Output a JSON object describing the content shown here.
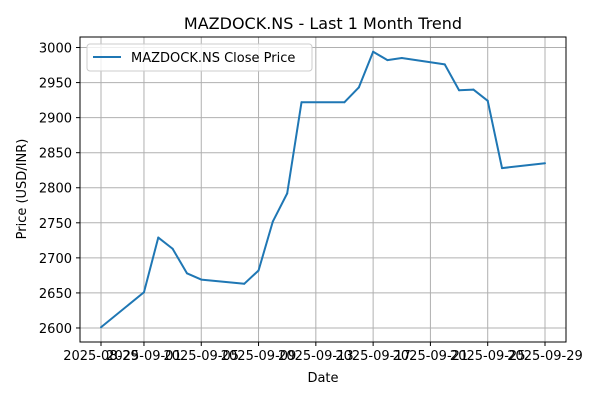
{
  "chart_data": {
    "type": "line",
    "title": "MAZDOCK.NS - Last 1 Month Trend",
    "xlabel": "Date",
    "ylabel": "Price (USD/INR)",
    "ylim": [
      2580,
      3015
    ],
    "yticks": [
      2600,
      2650,
      2700,
      2750,
      2800,
      2850,
      2900,
      2950,
      3000
    ],
    "xtick_labels": [
      "2025-08-29",
      "2025-09-01",
      "2025-09-05",
      "2025-09-09",
      "2025-09-13",
      "2025-09-17",
      "2025-09-21",
      "2025-09-25",
      "2025-09-29"
    ],
    "grid": true,
    "legend_position": "top-left",
    "colors": {
      "line": "#1f77b4",
      "grid": "#b0b0b0"
    },
    "series": [
      {
        "name": "MAZDOCK.NS Close Price",
        "x": [
          "2025-08-29",
          "2025-09-01",
          "2025-09-02",
          "2025-09-03",
          "2025-09-04",
          "2025-09-05",
          "2025-09-08",
          "2025-09-09",
          "2025-09-10",
          "2025-09-11",
          "2025-09-12",
          "2025-09-15",
          "2025-09-16",
          "2025-09-17",
          "2025-09-18",
          "2025-09-19",
          "2025-09-22",
          "2025-09-23",
          "2025-09-24",
          "2025-09-25",
          "2025-09-26",
          "2025-09-29"
        ],
        "values": [
          2601,
          2651,
          2729,
          2713,
          2678,
          2669,
          2663,
          2682,
          2752,
          2792,
          2922,
          2922,
          2943,
          2994,
          2982,
          2985,
          2976,
          2939,
          2940,
          2924,
          2828,
          2835
        ]
      }
    ]
  }
}
